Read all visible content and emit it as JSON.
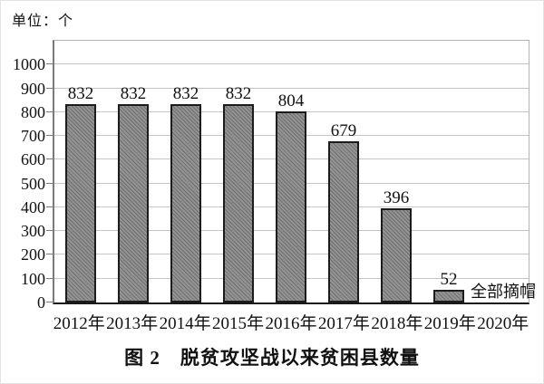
{
  "unit_label": "单位：个",
  "caption": "图 2　脱贫攻坚战以来贫困县数量",
  "colors": {
    "bar_fill": "#949494",
    "bar_hatch_stripe": "#6d6d6d",
    "bar_border": "#1c1c1c",
    "gridline": "#c4c4c4",
    "y_axis": "#7a7a7a",
    "x_axis": "#1a1a1a",
    "text": "#111111"
  },
  "chart_data": {
    "type": "bar",
    "title": "图 2　脱贫攻坚战以来贫困县数量",
    "unit_label": "单位：个",
    "categories": [
      "2012年",
      "2013年",
      "2014年",
      "2015年",
      "2016年",
      "2017年",
      "2018年",
      "2019年",
      "2020年"
    ],
    "values": [
      832,
      832,
      832,
      832,
      804,
      679,
      396,
      52,
      null
    ],
    "data_labels": [
      "832",
      "832",
      "832",
      "832",
      "804",
      "679",
      "396",
      "52",
      ""
    ],
    "annotation": {
      "text": "全部摘帽",
      "attached_to": "2019年"
    },
    "xlabel": "",
    "ylabel": "",
    "ylim": [
      0,
      1000
    ],
    "yticks": [
      0,
      100,
      200,
      300,
      400,
      500,
      600,
      700,
      800,
      900,
      1000
    ],
    "grid": "horizontal",
    "legend": "none",
    "bar_style": "diagonal-hatch"
  }
}
